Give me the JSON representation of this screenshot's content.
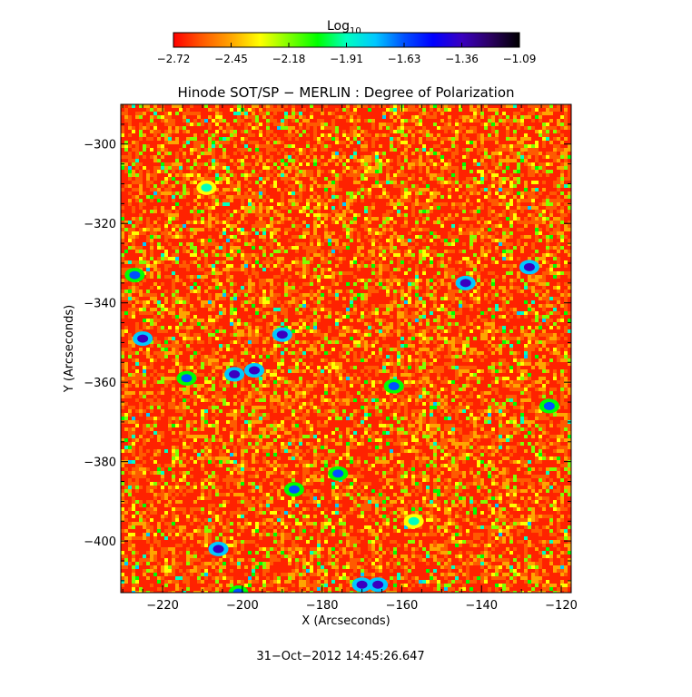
{
  "colorbar": {
    "label": "Log",
    "label_sub": "10",
    "ticks": [
      "−2.72",
      "−2.45",
      "−2.18",
      "−1.91",
      "−1.63",
      "−1.36",
      "−1.09"
    ],
    "colormap": [
      "#ff0000",
      "#ff5a00",
      "#ffa500",
      "#ffff00",
      "#7fff00",
      "#00ff00",
      "#00ffc0",
      "#00c8ff",
      "#0050ff",
      "#0000ff",
      "#3a00c0",
      "#2a0060",
      "#000000"
    ]
  },
  "chart_data": {
    "type": "heatmap",
    "title": "Hinode SOT/SP − MERLIN : Degree of Polarization",
    "xlabel": "X (Arcseconds)",
    "ylabel": "Y (Arcseconds)",
    "xlim": [
      -230.5,
      -117.5
    ],
    "ylim": [
      -413,
      -290
    ],
    "xticks": [
      -220,
      -200,
      -180,
      -160,
      -140,
      -120
    ],
    "yticks": [
      -300,
      -320,
      -340,
      -360,
      -380,
      -400
    ],
    "xtick_labels": [
      "−220",
      "−200",
      "−180",
      "−160",
      "−140",
      "−120"
    ],
    "ytick_labels": [
      "−300",
      "−320",
      "−340",
      "−360",
      "−380",
      "−400"
    ],
    "value_scale": "log10",
    "value_range": [
      -2.72,
      -1.09
    ],
    "background_value": -2.6,
    "patches": [
      {
        "x": -202,
        "y": -358,
        "value": -1.36
      },
      {
        "x": -197,
        "y": -357,
        "value": -1.36
      },
      {
        "x": -190,
        "y": -348,
        "value": -1.36
      },
      {
        "x": -225,
        "y": -349,
        "value": -1.36
      },
      {
        "x": -227,
        "y": -333,
        "value": -1.63
      },
      {
        "x": -214,
        "y": -359,
        "value": -1.63
      },
      {
        "x": -128,
        "y": -331,
        "value": -1.36
      },
      {
        "x": -144,
        "y": -335,
        "value": -1.36
      },
      {
        "x": -166,
        "y": -411,
        "value": -1.36
      },
      {
        "x": -170,
        "y": -411,
        "value": -1.36
      },
      {
        "x": -176,
        "y": -383,
        "value": -1.63
      },
      {
        "x": -187,
        "y": -387,
        "value": -1.63
      },
      {
        "x": -201,
        "y": -413,
        "value": -1.63
      },
      {
        "x": -206,
        "y": -402,
        "value": -1.36
      },
      {
        "x": -162,
        "y": -361,
        "value": -1.63
      },
      {
        "x": -123,
        "y": -366,
        "value": -1.63
      },
      {
        "x": -209,
        "y": -311,
        "value": -1.91
      },
      {
        "x": -157,
        "y": -395,
        "value": -1.91
      }
    ]
  },
  "footer": {
    "timestamp": "31−Oct−2012 14:45:26.647"
  }
}
